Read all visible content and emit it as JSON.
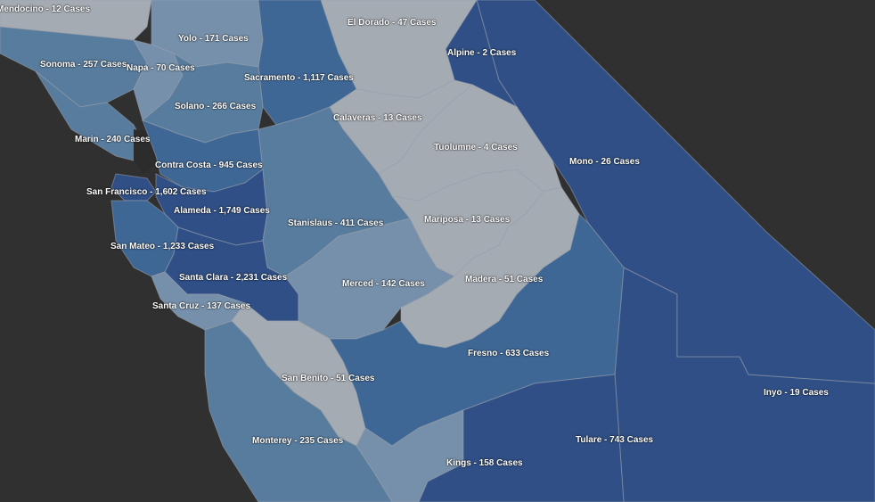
{
  "colors": {
    "background": "#2f2f2f",
    "ocean": "#333333",
    "scale_lowest": "#a5abb3",
    "scale_low": "#7690ab",
    "scale_mid": "#587c9e",
    "scale_high": "#3f6796",
    "scale_highest": "#2f4f86"
  },
  "counties": [
    {
      "key": "mendocino",
      "label": "Mendocino - 12 Cases",
      "name": "Mendocino",
      "cases": 12
    },
    {
      "key": "yolo",
      "label": "Yolo - 171 Cases",
      "name": "Yolo",
      "cases": 171
    },
    {
      "key": "el-dorado",
      "label": "El Dorado - 47 Cases",
      "name": "El Dorado",
      "cases": 47
    },
    {
      "key": "alpine",
      "label": "Alpine - 2 Cases",
      "name": "Alpine",
      "cases": 2
    },
    {
      "key": "sonoma",
      "label": "Sonoma - 257 Cases",
      "name": "Sonoma",
      "cases": 257
    },
    {
      "key": "napa",
      "label": "Napa - 70 Cases",
      "name": "Napa",
      "cases": 70
    },
    {
      "key": "sacramento",
      "label": "Sacramento - 1,117 Cases",
      "name": "Sacramento",
      "cases": 1117
    },
    {
      "key": "solano",
      "label": "Solano - 266 Cases",
      "name": "Solano",
      "cases": 266
    },
    {
      "key": "calaveras",
      "label": "Calaveras - 13 Cases",
      "name": "Calaveras",
      "cases": 13
    },
    {
      "key": "marin",
      "label": "Marin - 240 Cases",
      "name": "Marin",
      "cases": 240
    },
    {
      "key": "tuolumne",
      "label": "Tuolumne - 4 Cases",
      "name": "Tuolumne",
      "cases": 4
    },
    {
      "key": "mono",
      "label": "Mono - 26 Cases",
      "name": "Mono",
      "cases": 26
    },
    {
      "key": "contra-costa",
      "label": "Contra Costa - 945 Cases",
      "name": "Contra Costa",
      "cases": 945
    },
    {
      "key": "san-francisco",
      "label": "San Francisco - 1,602 Cases",
      "name": "San Francisco",
      "cases": 1602
    },
    {
      "key": "alameda",
      "label": "Alameda - 1,749 Cases",
      "name": "Alameda",
      "cases": 1749
    },
    {
      "key": "mariposa",
      "label": "Mariposa - 13 Cases",
      "name": "Mariposa",
      "cases": 13
    },
    {
      "key": "stanislaus",
      "label": "Stanislaus - 411 Cases",
      "name": "Stanislaus",
      "cases": 411
    },
    {
      "key": "san-mateo",
      "label": "San Mateo - 1,233 Cases",
      "name": "San Mateo",
      "cases": 1233
    },
    {
      "key": "santa-clara",
      "label": "Santa Clara - 2,231 Cases",
      "name": "Santa Clara",
      "cases": 2231
    },
    {
      "key": "madera",
      "label": "Madera - 51 Cases",
      "name": "Madera",
      "cases": 51
    },
    {
      "key": "merced",
      "label": "Merced - 142 Cases",
      "name": "Merced",
      "cases": 142
    },
    {
      "key": "santa-cruz",
      "label": "Santa Cruz - 137 Cases",
      "name": "Santa Cruz",
      "cases": 137
    },
    {
      "key": "fresno",
      "label": "Fresno - 633 Cases",
      "name": "Fresno",
      "cases": 633
    },
    {
      "key": "san-benito",
      "label": "San Benito - 51 Cases",
      "name": "San Benito",
      "cases": 51
    },
    {
      "key": "inyo",
      "label": "Inyo - 19 Cases",
      "name": "Inyo",
      "cases": 19
    },
    {
      "key": "tulare",
      "label": "Tulare - 743 Cases",
      "name": "Tulare",
      "cases": 743
    },
    {
      "key": "monterey",
      "label": "Monterey - 235 Cases",
      "name": "Monterey",
      "cases": 235
    },
    {
      "key": "kings",
      "label": "Kings - 158 Cases",
      "name": "Kings",
      "cases": 158
    }
  ]
}
